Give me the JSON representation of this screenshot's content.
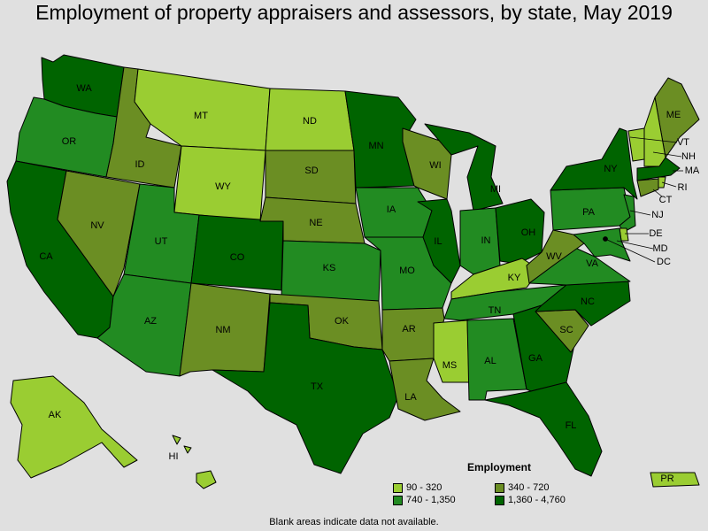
{
  "title": "Employment of property appraisers and assessors, by state, May 2019",
  "legend": {
    "title": "Employment",
    "classes": [
      {
        "label": "90 - 320",
        "color": "#9acd32"
      },
      {
        "label": "340 - 720",
        "color": "#6b8e23"
      },
      {
        "label": "740 - 1,350",
        "color": "#228b22"
      },
      {
        "label": "1,360 - 4,760",
        "color": "#006400"
      }
    ]
  },
  "note": "Blank areas indicate data not available.",
  "states": [
    {
      "abbr": "WA",
      "cls": 3
    },
    {
      "abbr": "OR",
      "cls": 2
    },
    {
      "abbr": "CA",
      "cls": 3
    },
    {
      "abbr": "ID",
      "cls": 1
    },
    {
      "abbr": "NV",
      "cls": 1
    },
    {
      "abbr": "MT",
      "cls": 0
    },
    {
      "abbr": "WY",
      "cls": 0
    },
    {
      "abbr": "UT",
      "cls": 2
    },
    {
      "abbr": "AZ",
      "cls": 2
    },
    {
      "abbr": "CO",
      "cls": 3
    },
    {
      "abbr": "NM",
      "cls": 1
    },
    {
      "abbr": "ND",
      "cls": 0
    },
    {
      "abbr": "SD",
      "cls": 1
    },
    {
      "abbr": "NE",
      "cls": 1
    },
    {
      "abbr": "KS",
      "cls": 2
    },
    {
      "abbr": "OK",
      "cls": 1
    },
    {
      "abbr": "TX",
      "cls": 3
    },
    {
      "abbr": "MN",
      "cls": 3
    },
    {
      "abbr": "IA",
      "cls": 2
    },
    {
      "abbr": "MO",
      "cls": 2
    },
    {
      "abbr": "AR",
      "cls": 1
    },
    {
      "abbr": "LA",
      "cls": 1
    },
    {
      "abbr": "WI",
      "cls": 1
    },
    {
      "abbr": "IL",
      "cls": 3
    },
    {
      "abbr": "MI",
      "cls": 3
    },
    {
      "abbr": "IN",
      "cls": 2
    },
    {
      "abbr": "OH",
      "cls": 3
    },
    {
      "abbr": "KY",
      "cls": 0
    },
    {
      "abbr": "TN",
      "cls": 2
    },
    {
      "abbr": "MS",
      "cls": 0
    },
    {
      "abbr": "AL",
      "cls": 2
    },
    {
      "abbr": "GA",
      "cls": 3
    },
    {
      "abbr": "FL",
      "cls": 3
    },
    {
      "abbr": "SC",
      "cls": 1
    },
    {
      "abbr": "NC",
      "cls": 3
    },
    {
      "abbr": "VA",
      "cls": 2
    },
    {
      "abbr": "WV",
      "cls": 1
    },
    {
      "abbr": "PA",
      "cls": 2
    },
    {
      "abbr": "NY",
      "cls": 3
    },
    {
      "abbr": "ME",
      "cls": 1
    },
    {
      "abbr": "VT",
      "cls": 0
    },
    {
      "abbr": "NH",
      "cls": 0
    },
    {
      "abbr": "MA",
      "cls": 3
    },
    {
      "abbr": "RI",
      "cls": 0
    },
    {
      "abbr": "CT",
      "cls": 1
    },
    {
      "abbr": "NJ",
      "cls": 2
    },
    {
      "abbr": "DE",
      "cls": 0
    },
    {
      "abbr": "MD",
      "cls": 2
    },
    {
      "abbr": "DC",
      "cls": 3
    },
    {
      "abbr": "AK",
      "cls": 0
    },
    {
      "abbr": "HI",
      "cls": 0
    },
    {
      "abbr": "PR",
      "cls": 0
    }
  ]
}
